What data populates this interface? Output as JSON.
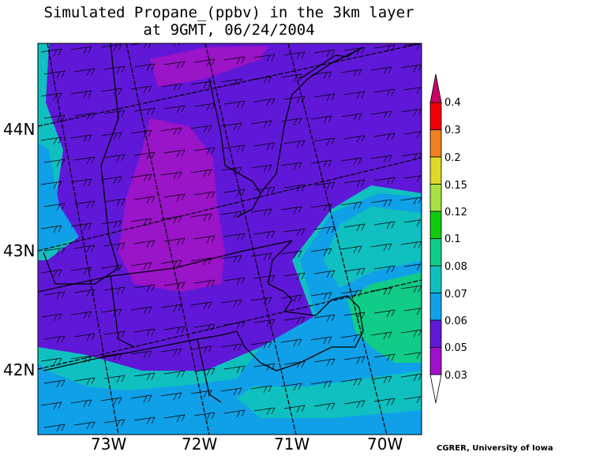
{
  "title": {
    "line1": "Simulated Propane_(ppbv) in the 3km layer",
    "line2": "at 9GMT, 06/24/2004"
  },
  "latitude_labels": [
    "44N",
    "43N",
    "42N"
  ],
  "longitude_labels": [
    "73W",
    "72W",
    "71W",
    "70W"
  ],
  "colorbar": {
    "labels": [
      "0.4",
      "0.3",
      "0.2",
      "0.15",
      "0.12",
      "0.1",
      "0.08",
      "0.07",
      "0.06",
      "0.05",
      "0.03"
    ],
    "colors": [
      "#cc0066",
      "#ee0000",
      "#f08020",
      "#e0d828",
      "#a8e040",
      "#10cc10",
      "#10cc88",
      "#10c0c0",
      "#10a0e8",
      "#6018d8",
      "#a010c8"
    ]
  },
  "map_colors": {
    "purple": "#6018d8",
    "magenta": "#9a14c8",
    "blue": "#10a0e8",
    "cyan": "#10c0c0",
    "green": "#10cc88"
  },
  "credit": "CGRER, University of Iowa"
}
